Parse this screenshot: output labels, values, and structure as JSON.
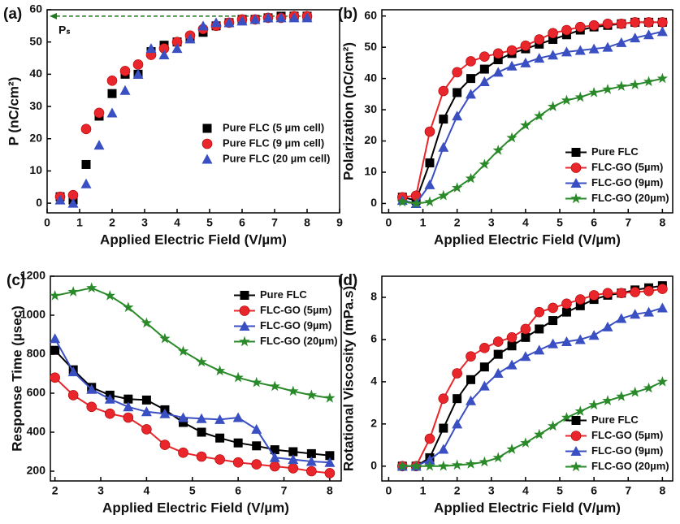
{
  "chart_data": [
    {
      "type": "scatter",
      "panel_label": "(a)",
      "x_label": "Applied Electric Field (V/µm)",
      "y_label": "P (nC/cm²)",
      "x": [
        0.4,
        0.8,
        1.2,
        1.6,
        2.0,
        2.4,
        2.8,
        3.2,
        3.6,
        4.0,
        4.4,
        4.8,
        5.2,
        5.6,
        6.0,
        6.4,
        6.8,
        7.2,
        7.6,
        8.0
      ],
      "xlim": [
        0,
        9
      ],
      "xticks": [
        0,
        1,
        2,
        3,
        4,
        5,
        6,
        7,
        8,
        9
      ],
      "ylim": [
        -3,
        60
      ],
      "yticks": [
        0,
        10,
        20,
        30,
        40,
        50,
        60
      ],
      "legend": "center right",
      "annotation": {
        "text": "Pₛ",
        "value": 58,
        "color": "#1e7b1e"
      },
      "series": [
        {
          "name": "Pure FLC (5 µm cell)",
          "color": "#000000",
          "marker": "square",
          "values": [
            2,
            1,
            12,
            27,
            34,
            40,
            40,
            47,
            49,
            50,
            51,
            53,
            55,
            56,
            57,
            57,
            57.5,
            58,
            58,
            58
          ]
        },
        {
          "name": "Pure FLC (9 µm cell)",
          "color": "#e8262b",
          "marker": "circle",
          "values": [
            2,
            2.5,
            23,
            28,
            38,
            41,
            43,
            46,
            48,
            50,
            52,
            54,
            55,
            56,
            57,
            57,
            57.5,
            57.5,
            58,
            58
          ]
        },
        {
          "name": "Pure FLC (20 µm cell)",
          "color": "#3a4fc1",
          "marker": "triangle",
          "values": [
            1,
            0,
            6,
            18,
            28,
            35,
            40,
            48,
            46,
            48,
            51,
            55,
            56,
            56,
            56.5,
            57,
            57.5,
            57.5,
            57.5,
            57.5
          ]
        }
      ]
    },
    {
      "type": "line",
      "panel_label": "(b)",
      "x_label": "Applied Electric Field (V/µm)",
      "y_label": "Polarization (nC/cm²)",
      "x": [
        0.4,
        0.8,
        1.2,
        1.6,
        2.0,
        2.4,
        2.8,
        3.2,
        3.6,
        4.0,
        4.4,
        4.8,
        5.2,
        5.6,
        6.0,
        6.4,
        6.8,
        7.2,
        7.6,
        8.0
      ],
      "xlim": [
        -0.2,
        8.3
      ],
      "xticks": [
        0,
        1,
        2,
        3,
        4,
        5,
        6,
        7,
        8
      ],
      "ylim": [
        -3,
        62
      ],
      "yticks": [
        0,
        10,
        20,
        30,
        40,
        50,
        60
      ],
      "legend": "lower right",
      "series": [
        {
          "name": "Pure FLC",
          "color": "#000000",
          "marker": "square",
          "values": [
            2,
            1,
            13,
            27,
            35.5,
            40,
            43,
            46,
            48,
            49.5,
            51,
            52.5,
            54,
            55.5,
            56.5,
            57,
            57.5,
            58,
            58,
            58
          ]
        },
        {
          "name": "FLC-GO (5µm)",
          "color": "#e8262b",
          "marker": "circle",
          "values": [
            2,
            2.5,
            23,
            36,
            42,
            45.5,
            47,
            48,
            49,
            50.5,
            52.5,
            54.5,
            55.5,
            56.5,
            57,
            57.5,
            57.5,
            58,
            58,
            58
          ]
        },
        {
          "name": "FLC-GO (9µm)",
          "color": "#3a4fc1",
          "marker": "triangle",
          "values": [
            1,
            0,
            6,
            18,
            28,
            35,
            39,
            42,
            44,
            45,
            46.5,
            47.5,
            48.5,
            49,
            49.5,
            50,
            51.5,
            53,
            54,
            55
          ]
        },
        {
          "name": "FLC-GO (20µm)",
          "color": "#2a8a2a",
          "marker": "star",
          "values": [
            0.5,
            0,
            0.5,
            2.5,
            5,
            8,
            12.5,
            17,
            21,
            25,
            28,
            31,
            33,
            34,
            35.5,
            36.5,
            37.5,
            38,
            39,
            40
          ]
        }
      ]
    },
    {
      "type": "line",
      "panel_label": "(c)",
      "x_label": "Applied Electric Field (V/µm)",
      "y_label": "Response Time (µsec)",
      "x": [
        2.0,
        2.4,
        2.8,
        3.2,
        3.6,
        4.0,
        4.4,
        4.8,
        5.2,
        5.6,
        6.0,
        6.4,
        6.8,
        7.2,
        7.6,
        8.0
      ],
      "xlim": [
        1.9,
        8.25
      ],
      "xticks": [
        2,
        3,
        4,
        5,
        6,
        7,
        8
      ],
      "ylim": [
        150,
        1200
      ],
      "yticks": [
        200,
        400,
        600,
        800,
        1000,
        1200
      ],
      "legend": "upper right",
      "series": [
        {
          "name": "Pure FLC",
          "color": "#000000",
          "marker": "square",
          "values": [
            820,
            720,
            630,
            590,
            570,
            565,
            515,
            450,
            400,
            370,
            345,
            330,
            310,
            300,
            290,
            280
          ]
        },
        {
          "name": "FLC-GO (5µm)",
          "color": "#e8262b",
          "marker": "circle",
          "values": [
            680,
            590,
            530,
            495,
            475,
            415,
            335,
            295,
            275,
            260,
            245,
            235,
            225,
            215,
            200,
            190
          ]
        },
        {
          "name": "FLC-GO (9µm)",
          "color": "#3a4fc1",
          "marker": "triangle",
          "values": [
            880,
            710,
            620,
            570,
            530,
            505,
            495,
            475,
            470,
            465,
            475,
            415,
            270,
            260,
            250,
            245
          ]
        },
        {
          "name": "FLC-GO (20µm)",
          "color": "#2a8a2a",
          "marker": "star",
          "values": [
            1100,
            1120,
            1140,
            1100,
            1040,
            960,
            880,
            815,
            760,
            715,
            680,
            655,
            635,
            610,
            590,
            575
          ]
        }
      ]
    },
    {
      "type": "line",
      "panel_label": "(d)",
      "x_label": "Applied Electric Field (V/µm)",
      "y_label": "Rotational Viscosity (mPa.s)",
      "x": [
        0.4,
        0.8,
        1.2,
        1.6,
        2.0,
        2.4,
        2.8,
        3.2,
        3.6,
        4.0,
        4.4,
        4.8,
        5.2,
        5.6,
        6.0,
        6.4,
        6.8,
        7.2,
        7.6,
        8.0
      ],
      "xlim": [
        -0.2,
        8.3
      ],
      "xticks": [
        0,
        1,
        2,
        3,
        4,
        5,
        6,
        7,
        8
      ],
      "ylim": [
        -0.7,
        9
      ],
      "yticks": [
        0,
        2,
        4,
        6,
        8
      ],
      "legend": "lower right",
      "series": [
        {
          "name": "Pure FLC",
          "color": "#000000",
          "marker": "square",
          "values": [
            0,
            0,
            0.4,
            1.8,
            3.2,
            4.1,
            4.7,
            5.3,
            5.7,
            6.1,
            6.5,
            6.9,
            7.3,
            7.6,
            7.9,
            8.1,
            8.2,
            8.35,
            8.45,
            8.55
          ]
        },
        {
          "name": "FLC-GO (5µm)",
          "color": "#e8262b",
          "marker": "circle",
          "values": [
            0,
            0,
            1.3,
            3.2,
            4.4,
            5.2,
            5.6,
            5.9,
            6.1,
            6.5,
            7.3,
            7.5,
            7.7,
            7.9,
            8.1,
            8.2,
            8.2,
            8.25,
            8.3,
            8.4
          ]
        },
        {
          "name": "FLC-GO (9µm)",
          "color": "#3a4fc1",
          "marker": "triangle",
          "values": [
            0,
            0,
            0.3,
            0.8,
            2.0,
            3.1,
            3.8,
            4.4,
            4.8,
            5.2,
            5.5,
            5.8,
            5.9,
            6.0,
            6.2,
            6.6,
            7.0,
            7.2,
            7.3,
            7.5
          ]
        },
        {
          "name": "FLC-GO (20µm)",
          "color": "#2a8a2a",
          "marker": "star",
          "values": [
            0,
            0,
            0,
            0,
            0.05,
            0.1,
            0.2,
            0.4,
            0.8,
            1.1,
            1.5,
            1.9,
            2.3,
            2.6,
            2.9,
            3.1,
            3.3,
            3.5,
            3.7,
            4.0
          ]
        }
      ]
    }
  ]
}
